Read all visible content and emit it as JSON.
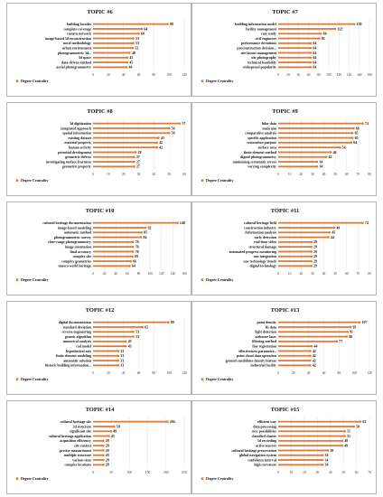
{
  "legend_label": "Degree Centrality",
  "bar_color": "#e07b39",
  "chart_data": [
    {
      "type": "bar",
      "orientation": "horizontal",
      "title": "TOPIC #6",
      "categories": [
        "building facades",
        "complete coverage",
        "camera network",
        "image-based 3d reconstruction",
        "novel methodology",
        "urban environment",
        "photogrammetric 3d...",
        "3d space",
        "data-driven method",
        "aerial photogrammetry"
      ],
      "values": [
        98,
        64,
        60,
        53,
        53,
        52,
        48,
        45,
        45,
        44
      ],
      "xlim": [
        0,
        120
      ],
      "xticks": [
        0,
        20,
        40,
        60,
        80,
        100,
        120
      ],
      "legend": "bottom-left"
    },
    {
      "type": "bar",
      "orientation": "horizontal",
      "title": "TOPIC #7",
      "categories": [
        "building information model",
        "facility management",
        "case study",
        "civil engineers",
        "performance deviations",
        "preconstruction decision...",
        "site layout management",
        "site photography",
        "technical feasibility",
        "widespread popularity"
      ],
      "values": [
        150,
        112,
        84,
        81,
        64,
        64,
        64,
        64,
        64,
        64
      ],
      "xlim": [
        0,
        180
      ],
      "xticks": [
        0,
        20,
        40,
        60,
        80,
        100,
        120,
        140,
        160,
        180
      ],
      "legend": "bottom-left"
    },
    {
      "type": "bar",
      "orientation": "horizontal",
      "title": "TOPIC #8",
      "categories": [
        "3d digitization",
        "integrated approach",
        "spatial information",
        "existing dataset",
        "material property",
        "human activity",
        "potential development",
        "geometric defects",
        "investigating surface fractures",
        "geometric property"
      ],
      "values": [
        57,
        50,
        50,
        43,
        42,
        42,
        28,
        27,
        27,
        27
      ],
      "xlim": [
        0,
        60
      ],
      "xticks": [
        0,
        10,
        20,
        30,
        40,
        50,
        60
      ],
      "legend": "bottom-left"
    },
    {
      "type": "bar",
      "orientation": "horizontal",
      "title": "TOPIC #9",
      "categories": [
        "lidar data",
        "main aim",
        "comparative analysis",
        "specific application",
        "restoration purpose",
        "surface area",
        "finite element method",
        "digital photogrammetry",
        "minimizing systematic errors",
        "varying complexity"
      ],
      "values": [
        74,
        66,
        65,
        65,
        64,
        54,
        46,
        42,
        34,
        34
      ],
      "xlim": [
        0,
        80
      ],
      "xticks": [
        0,
        10,
        20,
        30,
        40,
        50,
        60,
        70,
        80
      ],
      "legend": "bottom-left"
    },
    {
      "type": "bar",
      "orientation": "horizontal",
      "title": "TOPIC #10",
      "categories": [
        "cultural heritage documentation",
        "image-based modeling",
        "automatic method",
        "photogrammetric survey",
        "close-range photogrammetry",
        "image orientation",
        "final accuracy",
        "complex site",
        "complex geometries",
        "unesco world heritage"
      ],
      "values": [
        148,
        92,
        85,
        84,
        70,
        70,
        70,
        69,
        66,
        64
      ],
      "xlim": [
        0,
        160
      ],
      "xticks": [
        0,
        20,
        40,
        60,
        80,
        100,
        120,
        140,
        160
      ],
      "legend": "bottom-left"
    },
    {
      "type": "bar",
      "orientation": "horizontal",
      "title": "TOPIC #11",
      "categories": [
        "cultural heritage field",
        "construction industry",
        "deformation analysis",
        "early detection",
        "real-time video",
        "structural damage",
        "automated progress monitoring",
        "uav integration",
        "uav technology trends",
        "digital technology"
      ],
      "values": [
        74,
        49,
        45,
        44,
        29,
        29,
        29,
        29,
        29,
        29
      ],
      "xlim": [
        0,
        80
      ],
      "xticks": [
        0,
        10,
        20,
        30,
        40,
        50,
        60,
        70,
        80
      ],
      "legend": "bottom-left"
    },
    {
      "type": "bar",
      "orientation": "horizontal",
      "title": "TOPIC #12",
      "categories": [
        "digital documentation",
        "standard deviation",
        "reverse engineering",
        "genetic algorithm",
        "numerical analysis",
        "cad model",
        "hypothetical axis",
        "finite element modeling",
        "automatic solution",
        "historic building information..."
      ],
      "values": [
        99,
        65,
        53,
        53,
        43,
        43,
        33,
        33,
        33,
        33
      ],
      "xlim": [
        0,
        120
      ],
      "xticks": [
        0,
        20,
        40,
        60,
        80,
        100,
        120
      ],
      "legend": "bottom-left"
    },
    {
      "type": "bar",
      "orientation": "horizontal",
      "title": "TOPIC #13",
      "categories": [
        "point density",
        "tls data",
        "light detection",
        "airborne laser",
        "filtering method",
        "fine registration",
        "effectiveness parameter...",
        "point cloud data operation",
        "ground candidates density feature",
        "industrial facility"
      ],
      "values": [
        107,
        95,
        91,
        90,
        77,
        44,
        42,
        42,
        42,
        42
      ],
      "xlim": [
        0,
        120
      ],
      "xticks": [
        0,
        20,
        40,
        60,
        80,
        100,
        120
      ],
      "legend": "bottom-left"
    },
    {
      "type": "bar",
      "orientation": "horizontal",
      "title": "TOPIC #14",
      "categories": [
        "cultural heritage site",
        "3d structure",
        "significant site",
        "cultural heritage application",
        "acquisition efficiency",
        "site context",
        "precise measurement",
        "multiple structure",
        "various sizes",
        "complex locations"
      ],
      "values": [
        204,
        58,
        49,
        43,
        28,
        28,
        28,
        28,
        28,
        28
      ],
      "xlim": [
        0,
        250
      ],
      "xticks": [
        0,
        50,
        100,
        150,
        200,
        250
      ],
      "legend": "bottom-left"
    },
    {
      "type": "bar",
      "orientation": "horizontal",
      "title": "TOPIC #15",
      "categories": [
        "efficient way",
        "data processing",
        "new possibilities",
        "classified cluster",
        "3d recording",
        "active sensors",
        "cultural heritage preservation",
        "global navigation system",
        "confidence interval",
        "high curvature"
      ],
      "values": [
        63,
        58,
        51,
        51,
        49,
        49,
        38,
        34,
        34,
        34
      ],
      "xlim": [
        0,
        70
      ],
      "xticks": [
        0,
        10,
        20,
        30,
        40,
        50,
        60,
        70
      ],
      "legend": "bottom-left"
    }
  ]
}
